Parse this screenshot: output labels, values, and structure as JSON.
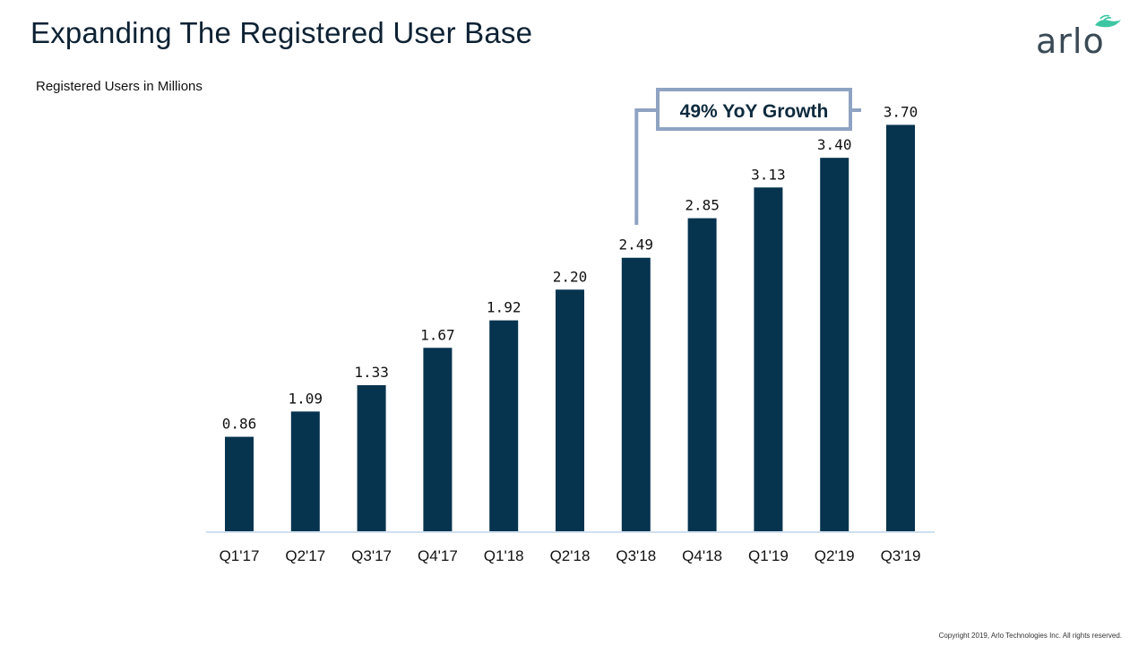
{
  "slide": {
    "title": "Expanding The Registered User Base",
    "subtitle": "Registered Users in Millions",
    "logo_text": "arlo",
    "copyright": "Copyright 2019, Arlo Technologies Inc. All rights reserved."
  },
  "colors": {
    "bar": "#06344f",
    "callout": "#8fa3c2",
    "axis": "#cfe0f0",
    "logo_accent": "#3cc6a2"
  },
  "chart_data": {
    "type": "bar",
    "title": "",
    "xlabel": "",
    "ylabel": "Registered Users in Millions",
    "categories": [
      "Q1'17",
      "Q2'17",
      "Q3'17",
      "Q4'17",
      "Q1'18",
      "Q2'18",
      "Q3'18",
      "Q4'18",
      "Q1'19",
      "Q2'19",
      "Q3'19"
    ],
    "values": [
      0.86,
      1.09,
      1.33,
      1.67,
      1.92,
      2.2,
      2.49,
      2.85,
      3.13,
      3.4,
      3.7
    ],
    "value_labels": [
      "0.86",
      "1.09",
      "1.33",
      "1.67",
      "1.92",
      "2.20",
      "2.49",
      "2.85",
      "3.13",
      "3.40",
      "3.70"
    ],
    "grid": false,
    "annotation": {
      "text": "49% YoY Growth",
      "from_category": "Q3'18",
      "to_category": "Q3'19"
    }
  }
}
